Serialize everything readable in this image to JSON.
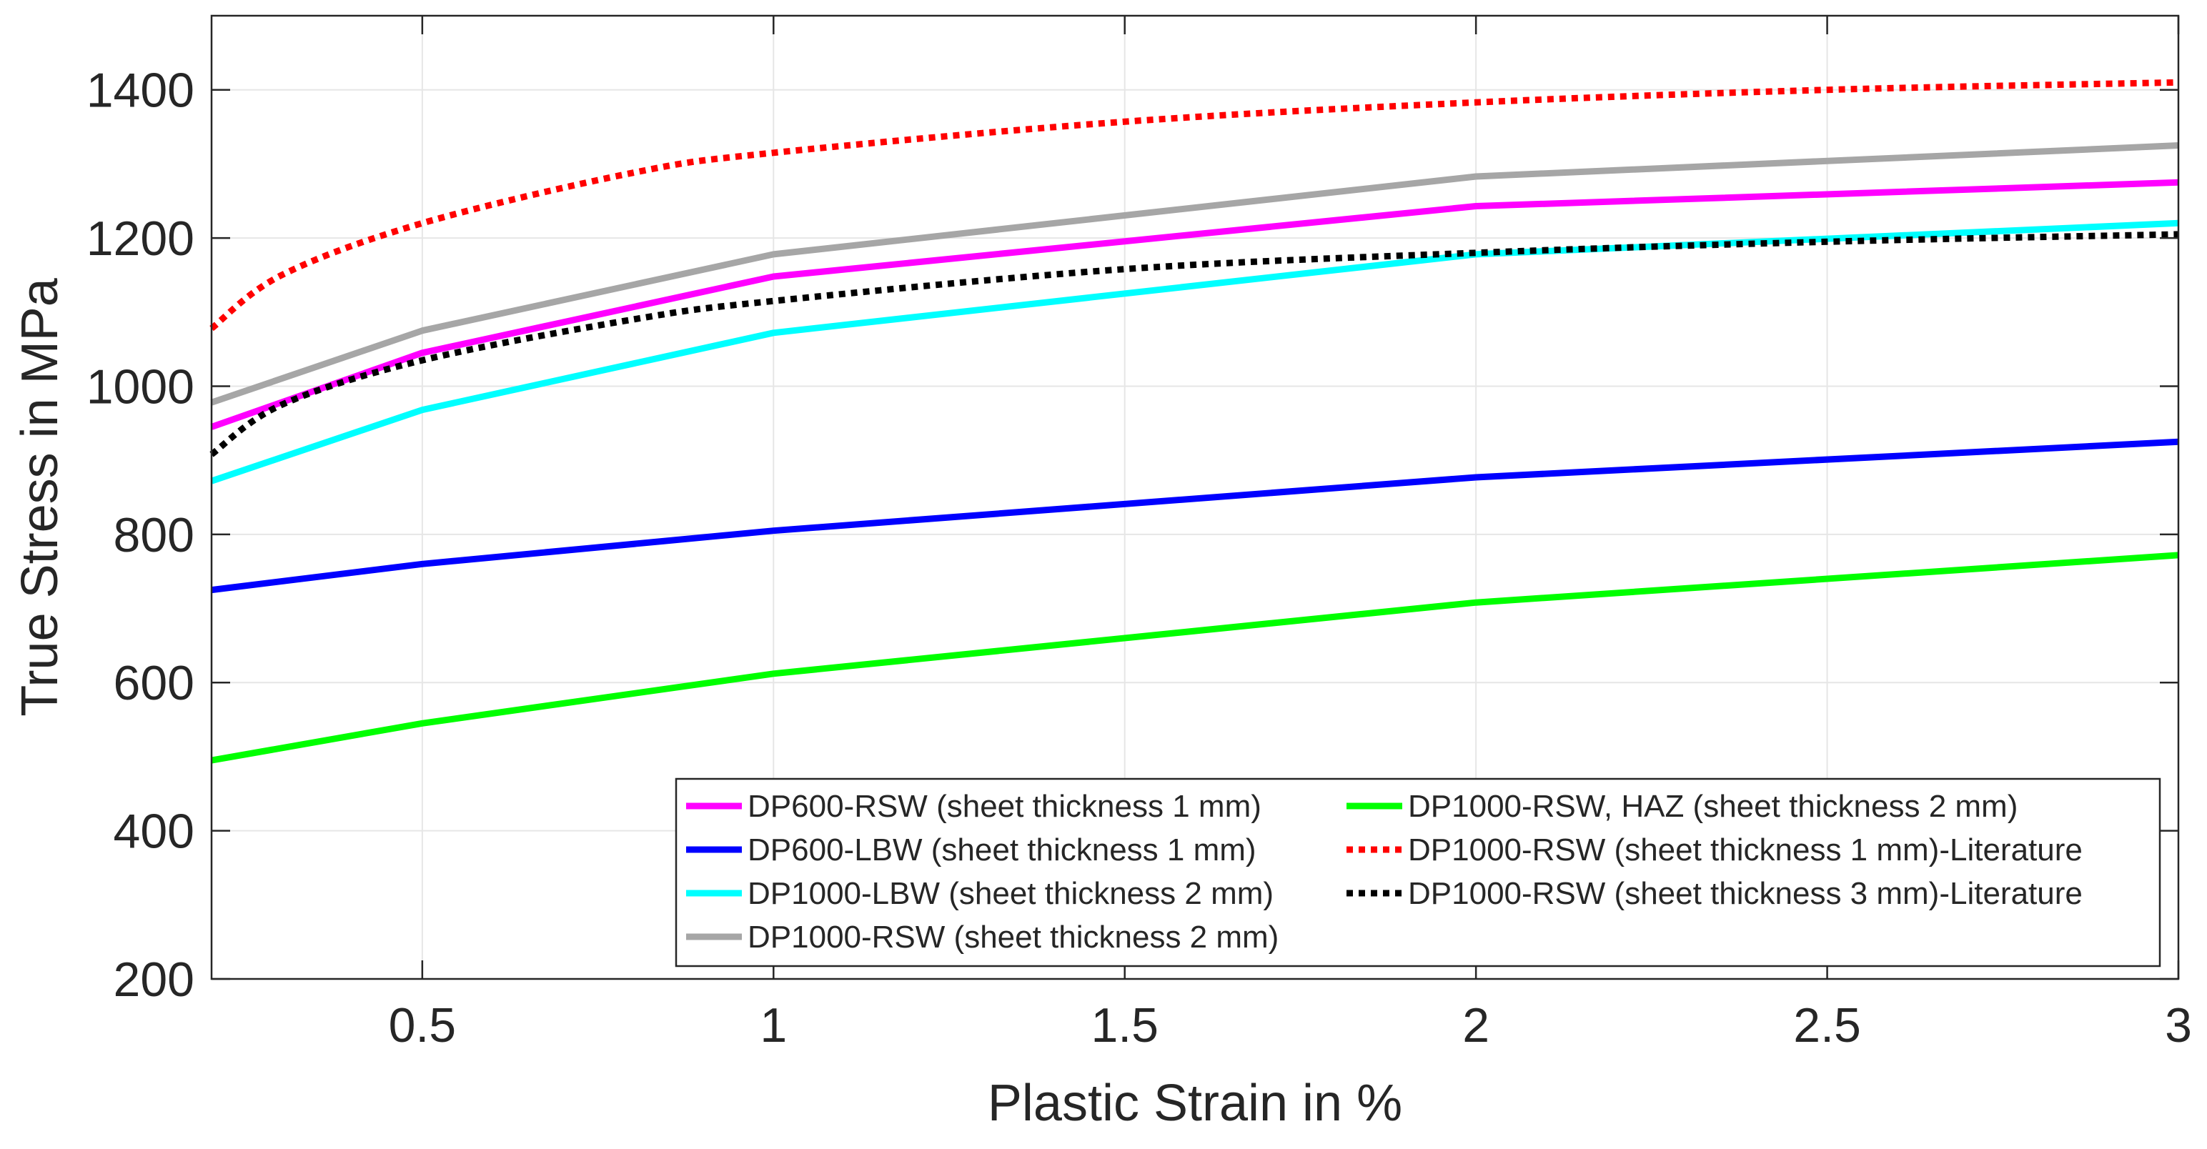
{
  "chart_data": {
    "type": "line",
    "title": "",
    "xlabel": "Plastic Strain in %",
    "ylabel": "True Stress in MPa",
    "xlim": [
      0.2,
      3
    ],
    "ylim": [
      200,
      1500
    ],
    "xticks": [
      0.5,
      1,
      1.5,
      2,
      2.5,
      3
    ],
    "xtick_labels": [
      "0.5",
      "1",
      "1.5",
      "2",
      "2.5",
      "3"
    ],
    "yticks": [
      200,
      400,
      600,
      800,
      1000,
      1200,
      1400
    ],
    "ytick_labels": [
      "200",
      "400",
      "600",
      "800",
      "1000",
      "1200",
      "1400"
    ],
    "grid": true,
    "legend_position": "bottom-right",
    "series": [
      {
        "name": "DP600-RSW (sheet thickness 1 mm)",
        "color": "#ff00ff",
        "style": "solid",
        "x": [
          0.2,
          0.5,
          1,
          2,
          3
        ],
        "y": [
          945,
          1045,
          1148,
          1243,
          1275
        ]
      },
      {
        "name": "DP600-LBW (sheet thickness 1 mm)",
        "color": "#0000ff",
        "style": "solid",
        "x": [
          0.2,
          0.5,
          1,
          2,
          3
        ],
        "y": [
          725,
          760,
          805,
          877,
          925
        ]
      },
      {
        "name": "DP1000-LBW (sheet thickness 2 mm)",
        "color": "#00ffff",
        "style": "solid",
        "x": [
          0.2,
          0.5,
          1,
          2,
          3
        ],
        "y": [
          872,
          968,
          1072,
          1178,
          1220
        ]
      },
      {
        "name": "DP1000-RSW (sheet thickness 2 mm)",
        "color": "#a6a6a6",
        "style": "solid",
        "x": [
          0.2,
          0.5,
          1,
          2,
          3
        ],
        "y": [
          978,
          1075,
          1178,
          1283,
          1325
        ]
      },
      {
        "name": "DP1000-RSW, HAZ (sheet thickness 2 mm)",
        "color": "#00ff00",
        "style": "solid",
        "x": [
          0.2,
          0.5,
          1,
          2,
          3
        ],
        "y": [
          495,
          545,
          612,
          708,
          772
        ]
      },
      {
        "name": "DP1000-RSW (sheet thickness 1 mm)-Literature",
        "color": "#ff0000",
        "style": "dotted",
        "x": [
          0.2,
          0.3,
          0.5,
          0.8,
          1,
          1.5,
          2,
          2.5,
          3
        ],
        "y": [
          1078,
          1150,
          1220,
          1288,
          1315,
          1357,
          1383,
          1400,
          1410
        ]
      },
      {
        "name": "DP1000-RSW (sheet thickness 3 mm)-Literature",
        "color": "#000000",
        "style": "dotted",
        "x": [
          0.2,
          0.3,
          0.5,
          0.8,
          1,
          1.5,
          2,
          2.5,
          3
        ],
        "y": [
          908,
          975,
          1035,
          1090,
          1115,
          1158,
          1180,
          1195,
          1205
        ]
      }
    ]
  }
}
